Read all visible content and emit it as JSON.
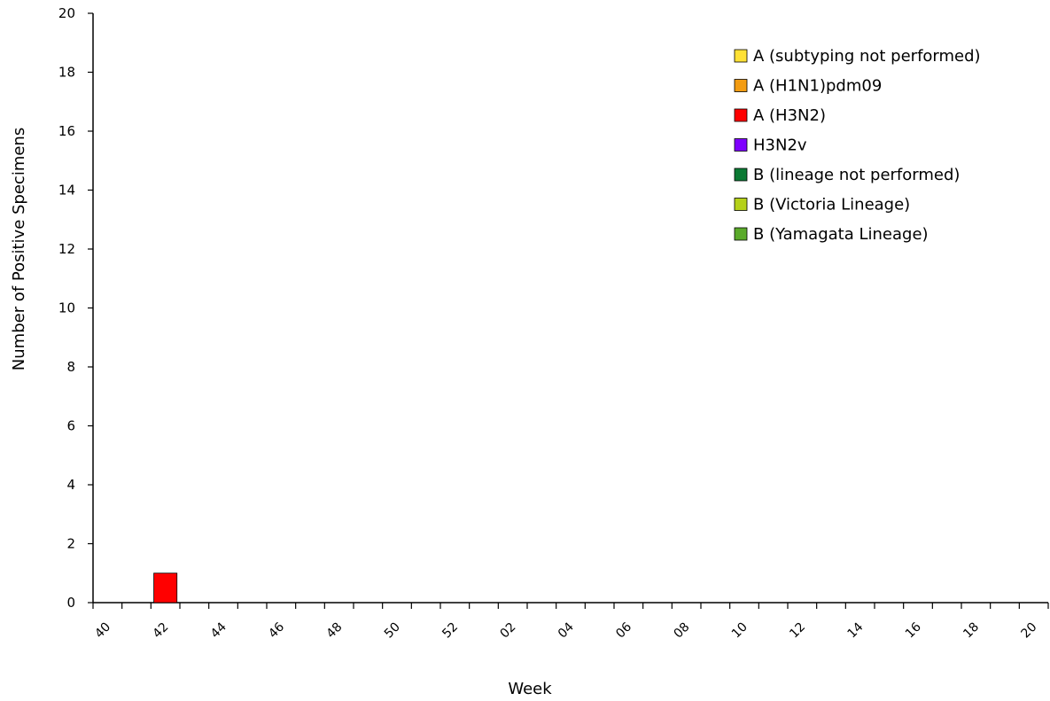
{
  "chart_data": {
    "type": "bar",
    "stacked": true,
    "title": "",
    "xlabel": "Week",
    "ylabel": "Number of Positive Specimens",
    "ylim": [
      0,
      20
    ],
    "yticks": [
      0,
      2,
      4,
      6,
      8,
      10,
      12,
      14,
      16,
      18,
      20
    ],
    "xtick_labels": [
      "40",
      "42",
      "44",
      "46",
      "48",
      "50",
      "52",
      "02",
      "04",
      "06",
      "08",
      "10",
      "12",
      "14",
      "16",
      "18",
      "20"
    ],
    "categories": [
      "40",
      "41",
      "42",
      "43",
      "44",
      "45",
      "46",
      "47",
      "48",
      "49",
      "50",
      "51",
      "52",
      "01",
      "02",
      "03",
      "04",
      "05",
      "06",
      "07",
      "08",
      "09",
      "10",
      "11",
      "12",
      "13",
      "14",
      "15",
      "16",
      "17",
      "18",
      "19",
      "20"
    ],
    "series": [
      {
        "name": "A (subtyping not performed)",
        "color": "#ffe135",
        "values": [
          0,
          0,
          0,
          0,
          0,
          0,
          0,
          0,
          0,
          0,
          0,
          0,
          0,
          0,
          0,
          0,
          0,
          0,
          0,
          0,
          0,
          0,
          0,
          0,
          0,
          0,
          0,
          0,
          0,
          0,
          0,
          0,
          0
        ]
      },
      {
        "name": "A (H1N1)pdm09",
        "color": "#f39c12",
        "values": [
          0,
          0,
          0,
          0,
          0,
          0,
          0,
          0,
          0,
          0,
          0,
          0,
          0,
          0,
          0,
          0,
          0,
          0,
          0,
          0,
          0,
          0,
          0,
          0,
          0,
          0,
          0,
          0,
          0,
          0,
          0,
          0,
          0
        ]
      },
      {
        "name": "A (H3N2)",
        "color": "#ff0000",
        "values": [
          0,
          0,
          1,
          0,
          0,
          0,
          0,
          0,
          0,
          0,
          0,
          0,
          0,
          0,
          0,
          0,
          0,
          0,
          0,
          0,
          0,
          0,
          0,
          0,
          0,
          0,
          0,
          0,
          0,
          0,
          0,
          0,
          0
        ]
      },
      {
        "name": "H3N2v",
        "color": "#7f00ff",
        "values": [
          0,
          0,
          0,
          0,
          0,
          0,
          0,
          0,
          0,
          0,
          0,
          0,
          0,
          0,
          0,
          0,
          0,
          0,
          0,
          0,
          0,
          0,
          0,
          0,
          0,
          0,
          0,
          0,
          0,
          0,
          0,
          0,
          0
        ]
      },
      {
        "name": "B (lineage not performed)",
        "color": "#0b7a34",
        "values": [
          0,
          0,
          0,
          0,
          0,
          0,
          0,
          0,
          0,
          0,
          0,
          0,
          0,
          0,
          0,
          0,
          0,
          0,
          0,
          0,
          0,
          0,
          0,
          0,
          0,
          0,
          0,
          0,
          0,
          0,
          0,
          0,
          0
        ]
      },
      {
        "name": "B (Victoria Lineage)",
        "color": "#b5d11a",
        "values": [
          0,
          0,
          0,
          0,
          0,
          0,
          0,
          0,
          0,
          0,
          0,
          0,
          0,
          0,
          0,
          0,
          0,
          0,
          0,
          0,
          0,
          0,
          0,
          0,
          0,
          0,
          0,
          0,
          0,
          0,
          0,
          0,
          0
        ]
      },
      {
        "name": "B (Yamagata Lineage)",
        "color": "#5aaa2a",
        "values": [
          0,
          0,
          0,
          0,
          0,
          0,
          0,
          0,
          0,
          0,
          0,
          0,
          0,
          0,
          0,
          0,
          0,
          0,
          0,
          0,
          0,
          0,
          0,
          0,
          0,
          0,
          0,
          0,
          0,
          0,
          0,
          0,
          0
        ]
      }
    ],
    "legend_position": "top-right",
    "grid": false
  }
}
